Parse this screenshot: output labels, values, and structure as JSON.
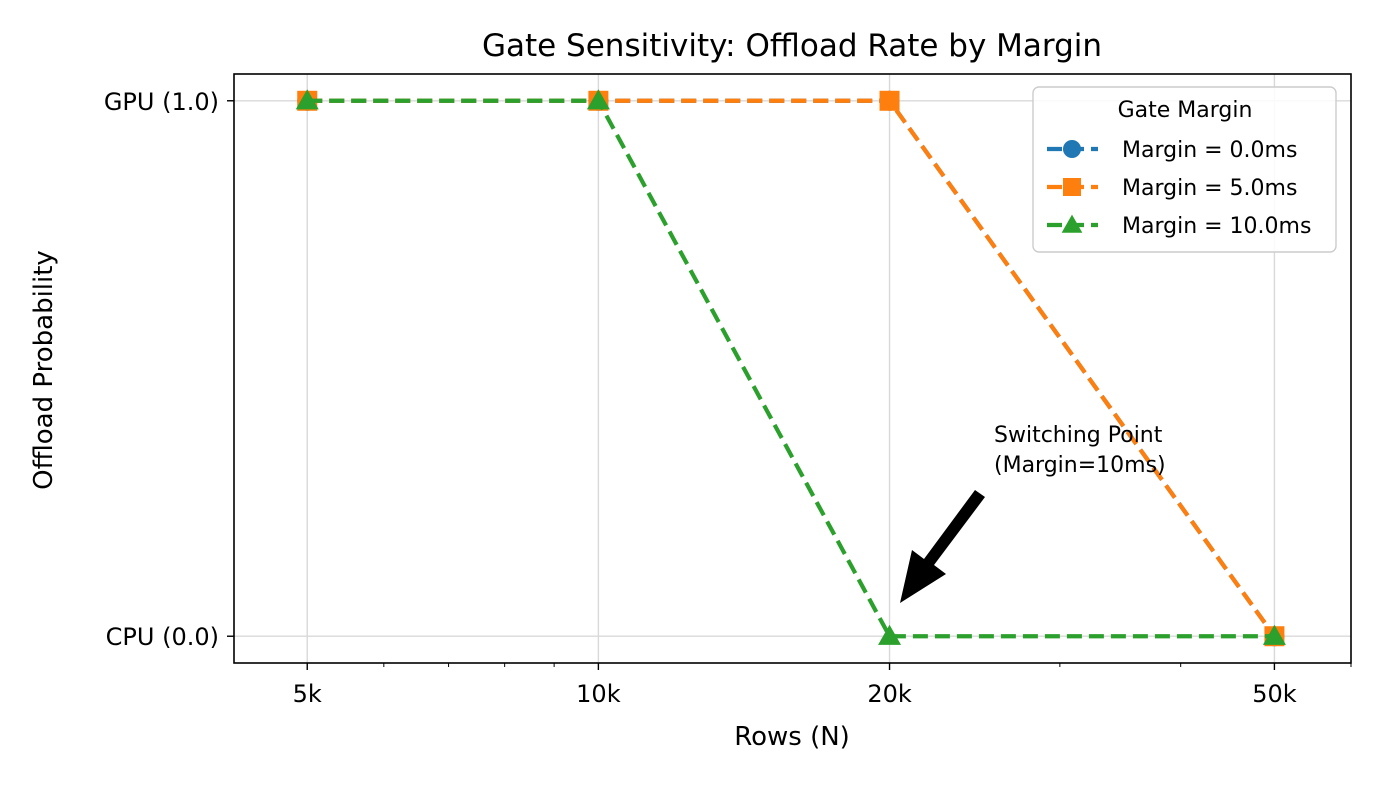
{
  "chart_data": {
    "type": "line",
    "title": "Gate Sensitivity: Offload Rate by Margin",
    "xlabel": "Rows (N)",
    "ylabel": "Offload Probability",
    "xscale": "log",
    "x": [
      5000,
      10000,
      20000,
      50000
    ],
    "xticks": [
      {
        "value": 5000,
        "label": "5k"
      },
      {
        "value": 10000,
        "label": "10k"
      },
      {
        "value": 20000,
        "label": "20k"
      },
      {
        "value": 50000,
        "label": "50k"
      }
    ],
    "yticks": [
      {
        "value": 1.0,
        "label": "GPU (1.0)"
      },
      {
        "value": 0.0,
        "label": "CPU (0.0)"
      }
    ],
    "xlim": [
      4200,
      60000
    ],
    "ylim": [
      -0.05,
      1.05
    ],
    "grid": true,
    "legend": {
      "title": "Gate Margin",
      "placement": "top-right"
    },
    "series": [
      {
        "name": "Margin = 0.0ms",
        "values": [
          1,
          1,
          1,
          0
        ],
        "color": "#1f77b4",
        "marker": "circle"
      },
      {
        "name": "Margin = 5.0ms",
        "values": [
          1,
          1,
          1,
          0
        ],
        "color": "#ff7f0e",
        "marker": "square"
      },
      {
        "name": "Margin = 10.0ms",
        "values": [
          1,
          1,
          0,
          0
        ],
        "color": "#2ca02c",
        "marker": "triangle"
      }
    ],
    "annotations": [
      {
        "text_lines": [
          "Switching Point",
          "(Margin=10ms)"
        ],
        "points_to": {
          "x": 20000,
          "y": 0
        }
      }
    ]
  }
}
